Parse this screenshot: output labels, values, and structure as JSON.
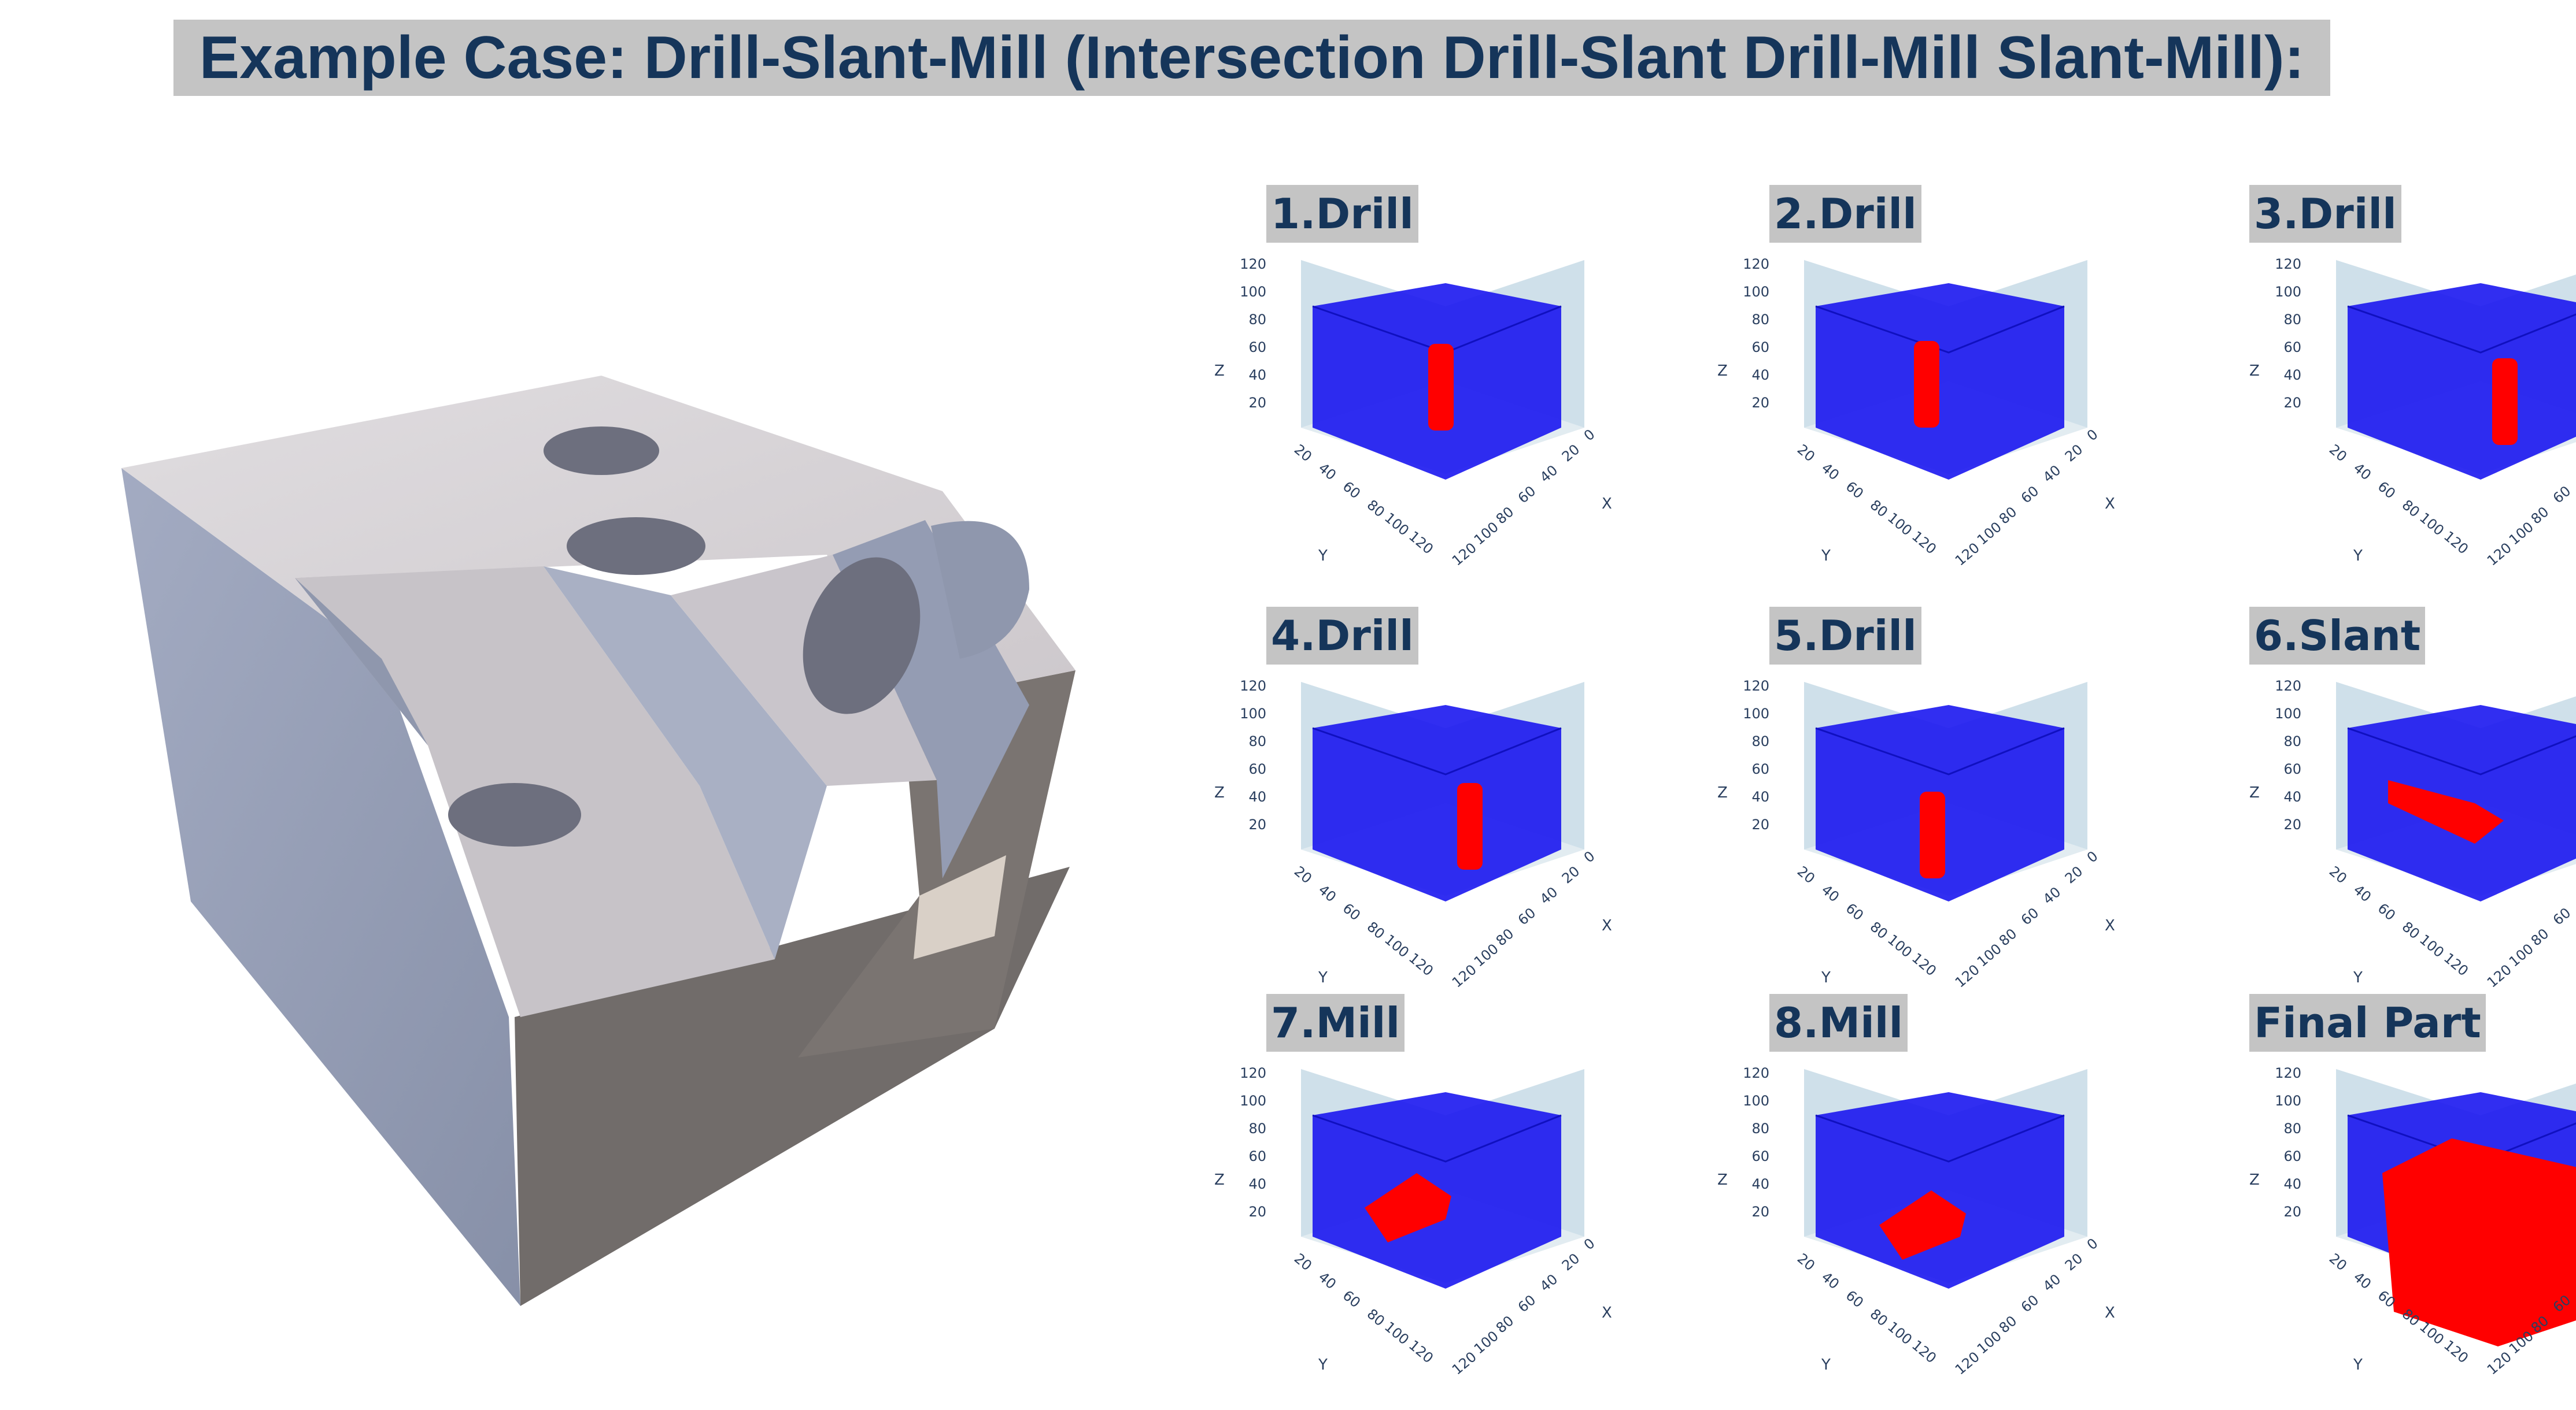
{
  "title": "Example Case: Drill-Slant-Mill (Intersection Drill-Slant Drill-Mill Slant-Mill):",
  "colors": {
    "stock": "#1b17f0",
    "feature": "#ff0000",
    "pane": "#cfe0ea",
    "title_bg": "#c4c4c4",
    "title_text": "#15355a"
  },
  "axes": {
    "z_label": "Z",
    "y_label": "Y",
    "x_label": "X",
    "z_ticks": [
      "20",
      "40",
      "60",
      "80",
      "100",
      "120"
    ],
    "y_ticks": [
      "20",
      "40",
      "60",
      "80",
      "100",
      "120"
    ],
    "x_ticks": [
      "0",
      "20",
      "40",
      "60",
      "80",
      "100",
      "120"
    ]
  },
  "panels": [
    {
      "title": "1.Drill",
      "feature": "drill"
    },
    {
      "title": "2.Drill",
      "feature": "drill"
    },
    {
      "title": "3.Drill",
      "feature": "drill"
    },
    {
      "title": "4.Drill",
      "feature": "drill"
    },
    {
      "title": "5.Drill",
      "feature": "drill"
    },
    {
      "title": "6.Slant",
      "feature": "slant"
    },
    {
      "title": "7.Mill",
      "feature": "mill"
    },
    {
      "title": "8.Mill",
      "feature": "mill"
    },
    {
      "title": "Final Part",
      "feature": "final"
    }
  ]
}
